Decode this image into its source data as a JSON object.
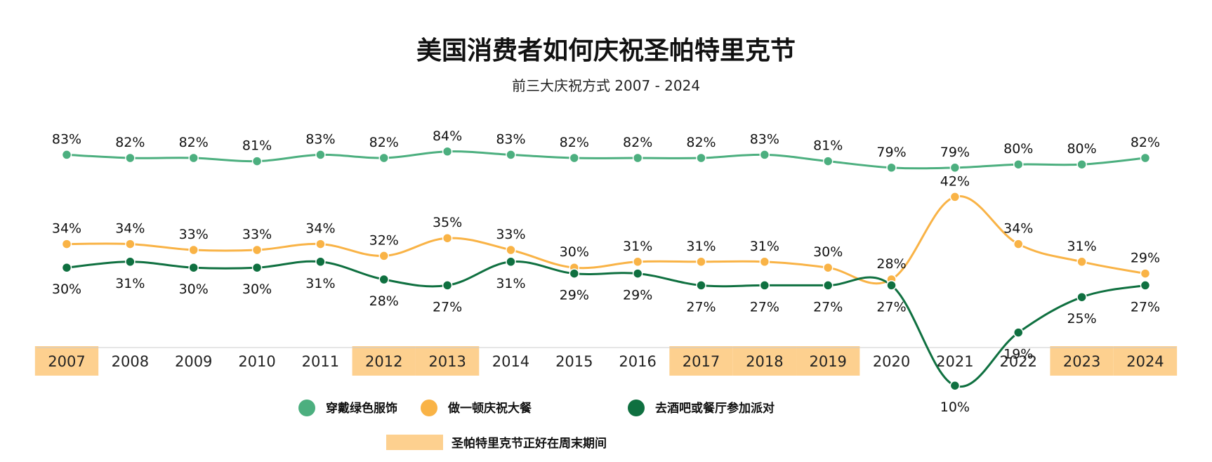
{
  "chart_data": {
    "type": "line",
    "title": "美国消费者如何庆祝圣帕特里克节",
    "subtitle": "前三大庆祝方式 2007 - 2024",
    "x": [
      "2007",
      "2008",
      "2009",
      "2010",
      "2011",
      "2012",
      "2013",
      "2014",
      "2015",
      "2016",
      "2017",
      "2018",
      "2019",
      "2020",
      "2021",
      "2022",
      "2023",
      "2024"
    ],
    "series": [
      {
        "name": "穿戴绿色服饰",
        "color": "#4caf7f",
        "values": [
          83,
          82,
          82,
          81,
          83,
          82,
          84,
          83,
          82,
          82,
          82,
          83,
          81,
          79,
          79,
          80,
          80,
          82
        ],
        "labels": [
          "83%",
          "82%",
          "82%",
          "81%",
          "83%",
          "82%",
          "84%",
          "83%",
          "82%",
          "82%",
          "82%",
          "83%",
          "81%",
          "79%",
          "79%",
          "80%",
          "80%",
          "82%"
        ],
        "label_position": "above"
      },
      {
        "name": "做一顿庆祝大餐",
        "color": "#f9b346",
        "values": [
          34,
          34,
          33,
          33,
          34,
          32,
          35,
          33,
          30,
          31,
          31,
          31,
          30,
          28,
          42,
          34,
          31,
          29
        ],
        "labels": [
          "34%",
          "34%",
          "33%",
          "33%",
          "34%",
          "32%",
          "35%",
          "33%",
          "30%",
          "31%",
          "31%",
          "31%",
          "30%",
          "28%",
          "42%",
          "34%",
          "31%",
          "29%"
        ],
        "label_position": "above"
      },
      {
        "name": "去酒吧或餐厅参加派对",
        "color": "#0f7040",
        "values": [
          30,
          31,
          30,
          30,
          31,
          28,
          27,
          31,
          29,
          29,
          27,
          27,
          27,
          27,
          10,
          19,
          25,
          27
        ],
        "labels": [
          "30%",
          "31%",
          "30%",
          "30%",
          "31%",
          "28%",
          "27%",
          "31%",
          "29%",
          "29%",
          "27%",
          "27%",
          "27%",
          "27%",
          "10%",
          "19%",
          "25%",
          "27%"
        ],
        "label_position": "below"
      }
    ],
    "highlight": {
      "name": "圣帕特里克节正好在周末期间",
      "color": "#fdd08f",
      "years": [
        "2007",
        "2012",
        "2013",
        "2017",
        "2018",
        "2019",
        "2023",
        "2024"
      ]
    },
    "xlabel": "",
    "ylabel": "",
    "grid": false,
    "legend_position": "bottom"
  }
}
